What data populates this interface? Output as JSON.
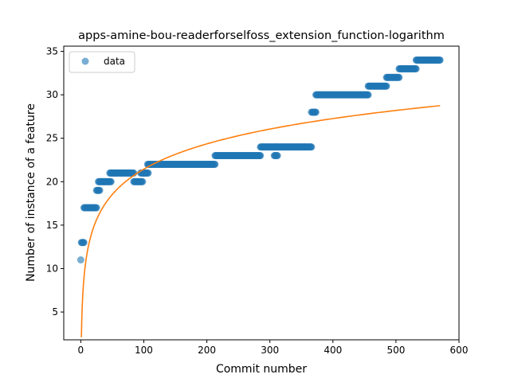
{
  "chart_data": {
    "type": "scatter",
    "title": "apps-amine-bou-readerforselfoss_extension_function-logarithm",
    "xlabel": "Commit number",
    "ylabel": "Number of instance of a feature",
    "xlim": [
      -27,
      600
    ],
    "ylim": [
      1.8,
      35.6
    ],
    "xticks": [
      0,
      100,
      200,
      300,
      400,
      500,
      600
    ],
    "yticks": [
      5,
      10,
      15,
      20,
      25,
      30,
      35
    ],
    "grid": false,
    "legend": {
      "placement": "top-left",
      "entries": [
        {
          "label": "data"
        }
      ]
    },
    "colors": {
      "data": "#1f77b4",
      "fit": "#ff7f0e"
    },
    "series": [
      {
        "name": "data",
        "kind": "points",
        "segments": [
          {
            "x_start": 0,
            "x_end": 0,
            "y": 11
          },
          {
            "x_start": 1,
            "x_end": 5,
            "y": 13
          },
          {
            "x_start": 5,
            "x_end": 25,
            "y": 17
          },
          {
            "x_start": 25,
            "x_end": 30,
            "y": 19
          },
          {
            "x_start": 28,
            "x_end": 48,
            "y": 20
          },
          {
            "x_start": 46,
            "x_end": 84,
            "y": 21
          },
          {
            "x_start": 84,
            "x_end": 98,
            "y": 20
          },
          {
            "x_start": 95,
            "x_end": 107,
            "y": 21
          },
          {
            "x_start": 106,
            "x_end": 213,
            "y": 22
          },
          {
            "x_start": 213,
            "x_end": 285,
            "y": 23
          },
          {
            "x_start": 285,
            "x_end": 310,
            "y": 24
          },
          {
            "x_start": 307,
            "x_end": 312,
            "y": 23
          },
          {
            "x_start": 310,
            "x_end": 366,
            "y": 24
          },
          {
            "x_start": 366,
            "x_end": 373,
            "y": 28
          },
          {
            "x_start": 373,
            "x_end": 456,
            "y": 30
          },
          {
            "x_start": 456,
            "x_end": 485,
            "y": 31
          },
          {
            "x_start": 485,
            "x_end": 505,
            "y": 32
          },
          {
            "x_start": 505,
            "x_end": 532,
            "y": 33
          },
          {
            "x_start": 532,
            "x_end": 570,
            "y": 34
          }
        ]
      },
      {
        "kind": "line",
        "fit": {
          "model": "logarithm",
          "a": 4.2,
          "b": 2.1,
          "x_start": 1,
          "x_end": 570
        }
      }
    ]
  }
}
